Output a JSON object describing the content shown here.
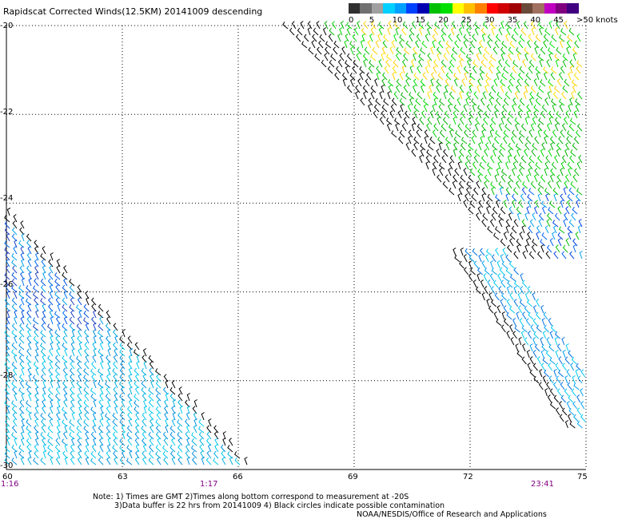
{
  "header": {
    "title": "Rapidscat Corrected Winds(12.5KM) 20141009 descending"
  },
  "legend": {
    "colors": [
      "#303030",
      "#707070",
      "#a0a0a0",
      "#00d0ff",
      "#00a0ff",
      "#0040ff",
      "#0000b0",
      "#00c000",
      "#00e000",
      "#ffff00",
      "#ffc000",
      "#ff8000",
      "#ff0000",
      "#d00000",
      "#a00000",
      "#6a4a3a",
      "#a07060",
      "#c000c0",
      "#800080",
      "#400080"
    ],
    "labels": [
      "0",
      "5",
      "10",
      "15",
      "20",
      "25",
      "30",
      "35",
      "40",
      "45",
      ">50 knots"
    ]
  },
  "map": {
    "lat_labels": [
      "-20",
      "-22",
      "-24",
      "-26",
      "-28",
      "-30"
    ],
    "lon_labels": [
      "60",
      "63",
      "66",
      "69",
      "72",
      "75"
    ],
    "time_labels": [
      "1:16",
      "1:17",
      "23:41"
    ]
  },
  "notes": {
    "line1": "Note: 1) Times are GMT 2)Times along bottom correspond to measurement at -20S",
    "line2": "3)Data buffer is 22 hrs from 20141009 4) Black circles indicate possible contamination",
    "credit": "NOAA/NESDIS/Office of Research and Applications"
  }
}
